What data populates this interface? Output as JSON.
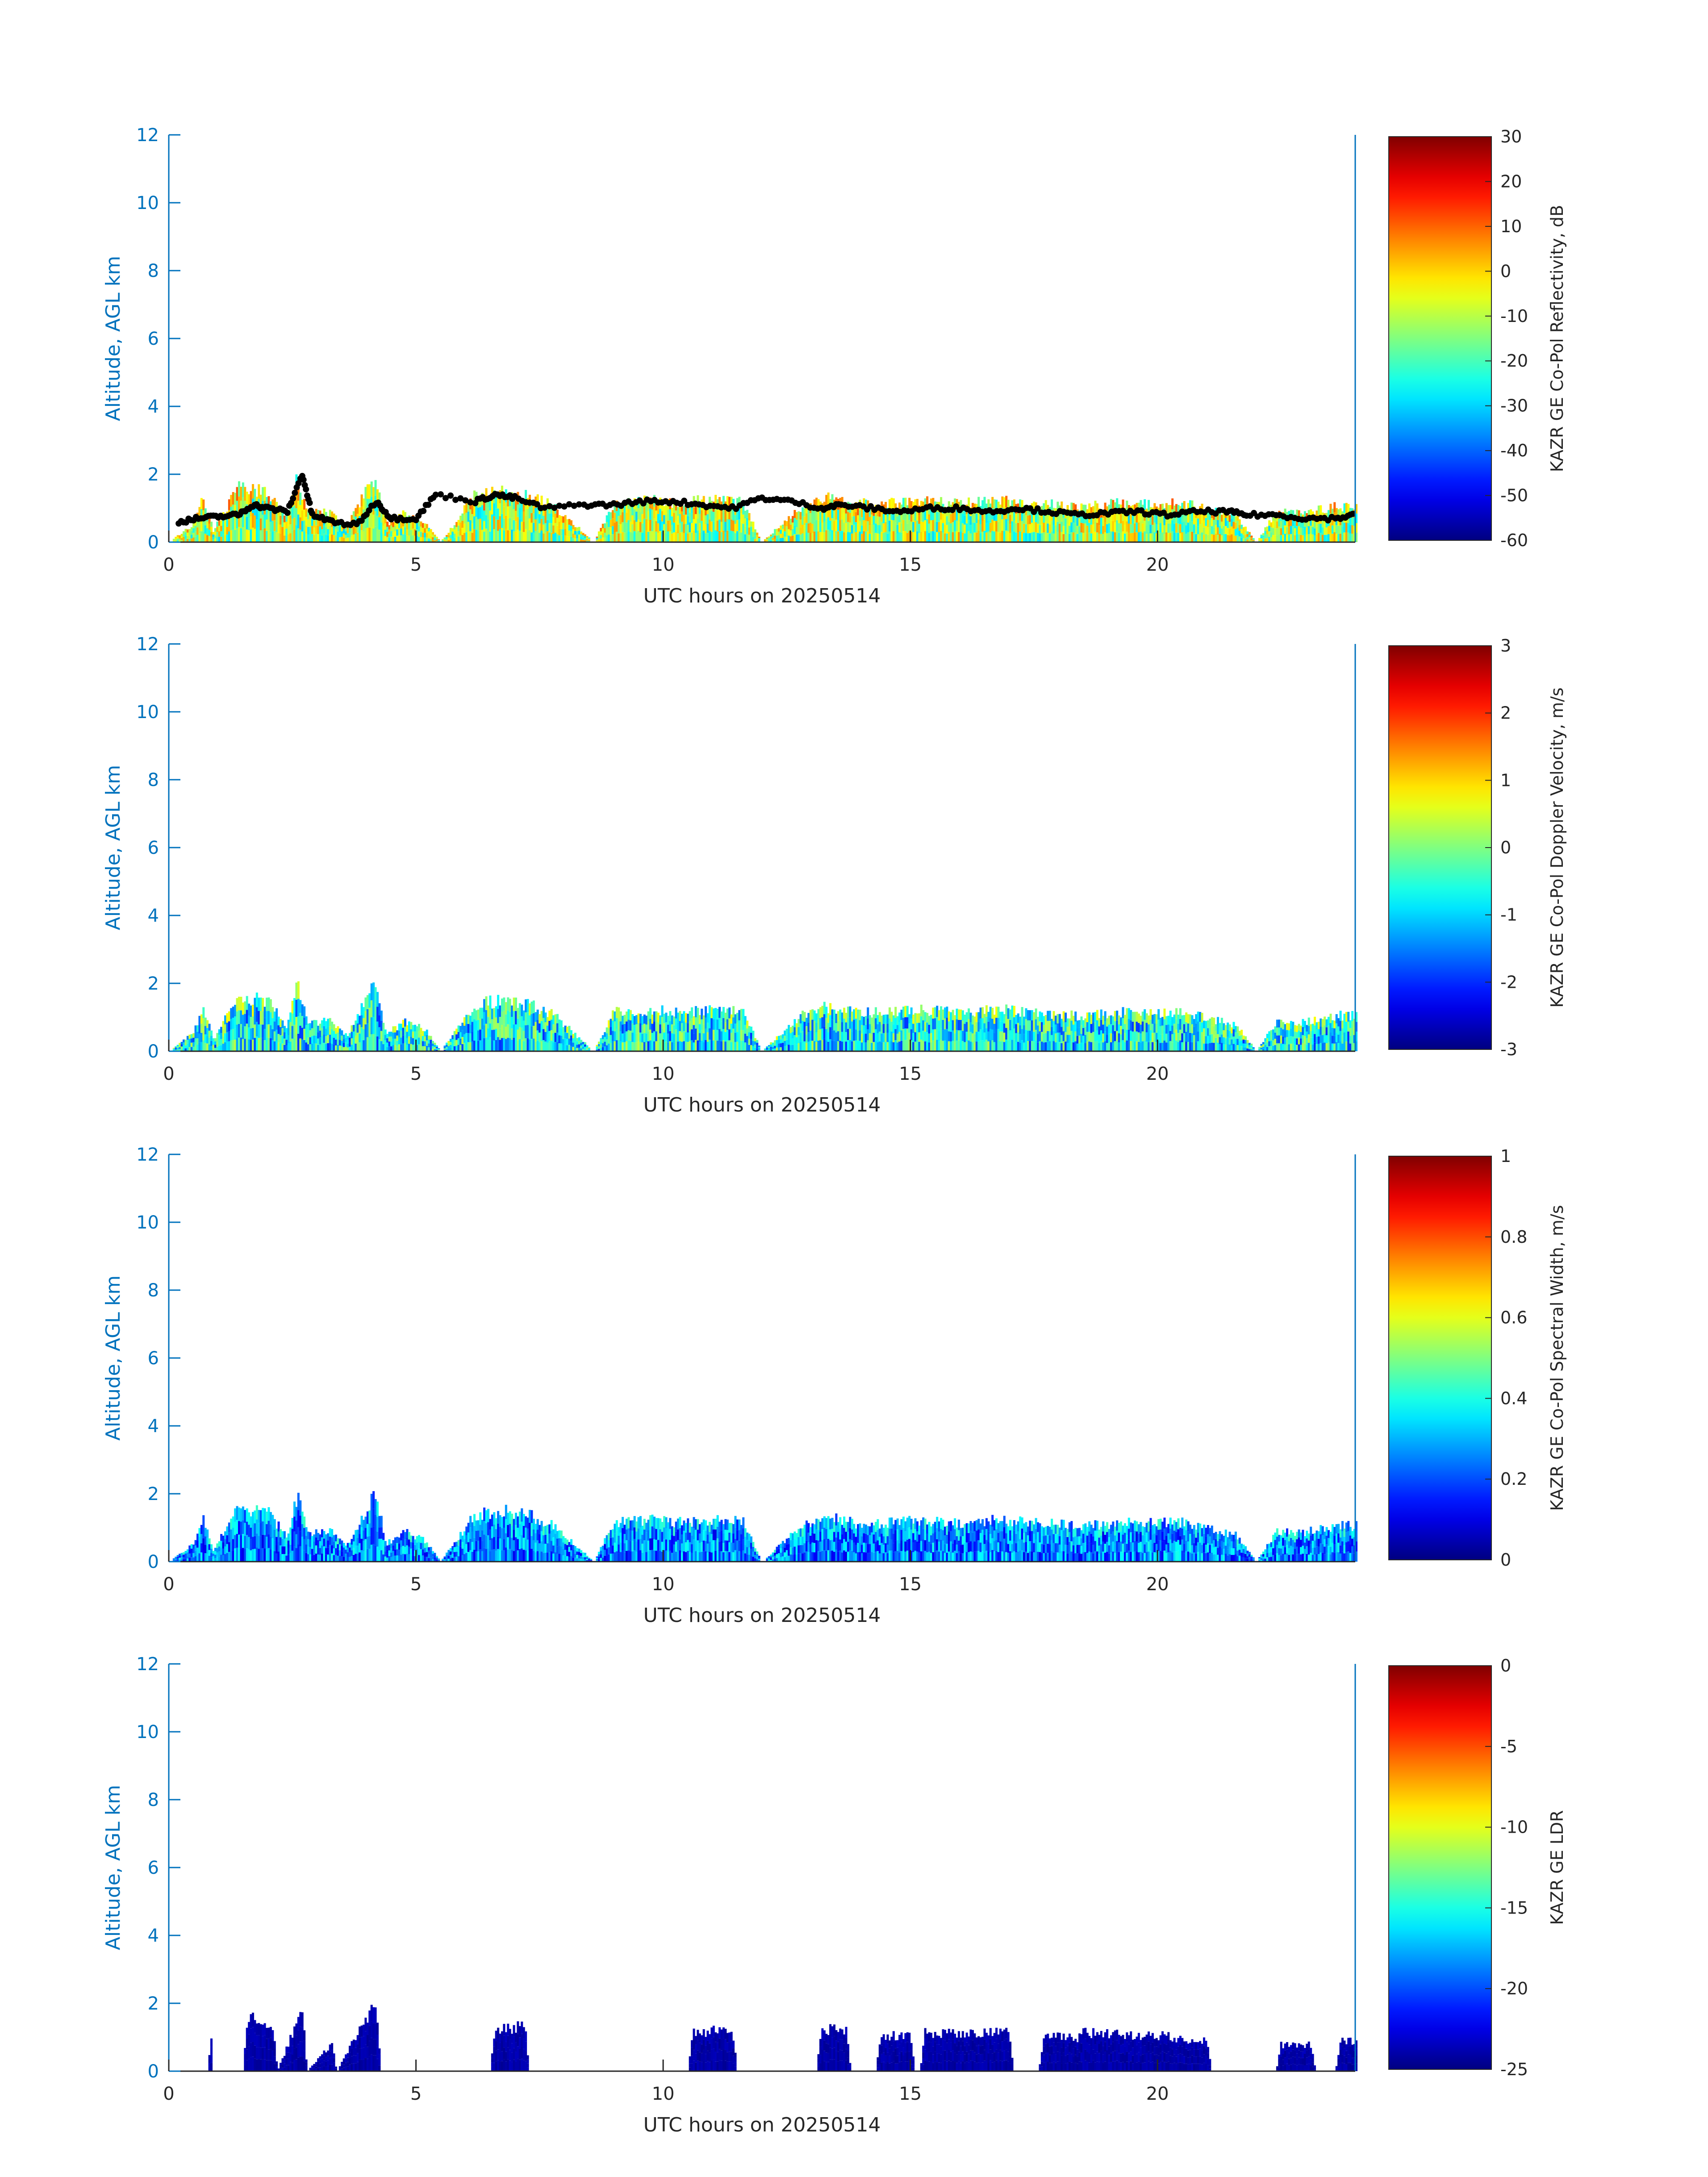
{
  "colors": {
    "axis_y": "#0072bd",
    "axis_x": "#262626",
    "marker": "#000000"
  },
  "chart_data": [
    {
      "type": "heatmap",
      "xlabel": "UTC hours on 20250514",
      "ylabel": "Altitude, AGL km",
      "xlim": [
        0,
        24
      ],
      "ylim": [
        0,
        12
      ],
      "xticks": [
        0,
        5,
        10,
        15,
        20
      ],
      "yticks": [
        0,
        2,
        4,
        6,
        8,
        10,
        12
      ],
      "colormap": "jet",
      "colorbar": {
        "label": "KAZR GE Co-Pol Reflectivity, dB",
        "range": [
          -60,
          30
        ],
        "ticks": [
          -60,
          -50,
          -40,
          -30,
          -20,
          -10,
          0,
          10,
          20,
          30
        ]
      },
      "cloud_top_km": [
        [
          0,
          0
        ],
        [
          0.5,
          0.6
        ],
        [
          0.7,
          1.5
        ],
        [
          0.9,
          0.4
        ],
        [
          1.4,
          1.8
        ],
        [
          2.0,
          1.7
        ],
        [
          2.4,
          0.8
        ],
        [
          2.6,
          2.2
        ],
        [
          2.8,
          1.0
        ],
        [
          3.3,
          1.0
        ],
        [
          3.6,
          0.5
        ],
        [
          4.0,
          1.8
        ],
        [
          4.2,
          2.2
        ],
        [
          4.4,
          0.6
        ],
        [
          4.8,
          1.0
        ],
        [
          5.2,
          0.7
        ],
        [
          5.5,
          0
        ],
        [
          6.2,
          1.6
        ],
        [
          6.8,
          1.7
        ],
        [
          7.4,
          1.5
        ],
        [
          7.8,
          1.2
        ],
        [
          8.6,
          0
        ],
        [
          9.0,
          1.3
        ],
        [
          9.8,
          1.4
        ],
        [
          10.2,
          1.3
        ],
        [
          10.8,
          1.4
        ],
        [
          11.6,
          1.4
        ],
        [
          12.0,
          0
        ],
        [
          12.8,
          1.2
        ],
        [
          13.3,
          1.5
        ],
        [
          13.9,
          1.3
        ],
        [
          14.4,
          1.3
        ],
        [
          15.2,
          1.4
        ],
        [
          16.0,
          1.3
        ],
        [
          16.8,
          1.4
        ],
        [
          17.6,
          1.3
        ],
        [
          18.4,
          1.2
        ],
        [
          19.2,
          1.3
        ],
        [
          20.0,
          1.3
        ],
        [
          20.6,
          1.3
        ],
        [
          21.0,
          1.1
        ],
        [
          21.6,
          0.9
        ],
        [
          22.0,
          0
        ],
        [
          22.4,
          1.0
        ],
        [
          23.0,
          1.0
        ],
        [
          23.6,
          1.2
        ],
        [
          24,
          1.2
        ]
      ],
      "mean_value": -12,
      "spread": 18,
      "marker_series": {
        "name": "",
        "points": [
          [
            0.2,
            0.6
          ],
          [
            0.6,
            0.7
          ],
          [
            1.0,
            0.75
          ],
          [
            1.4,
            0.8
          ],
          [
            1.7,
            1.1
          ],
          [
            2.0,
            1.0
          ],
          [
            2.4,
            0.9
          ],
          [
            2.7,
            2.0
          ],
          [
            2.9,
            0.8
          ],
          [
            3.3,
            0.6
          ],
          [
            3.8,
            0.5
          ],
          [
            4.2,
            1.2
          ],
          [
            4.5,
            0.7
          ],
          [
            5.0,
            0.7
          ],
          [
            5.4,
            1.4
          ],
          [
            6.2,
            1.2
          ],
          [
            6.6,
            1.4
          ],
          [
            7.0,
            1.3
          ],
          [
            7.6,
            1.0
          ],
          [
            8.4,
            1.1
          ],
          [
            9.0,
            1.1
          ],
          [
            9.6,
            1.2
          ],
          [
            10.2,
            1.2
          ],
          [
            10.8,
            1.1
          ],
          [
            11.4,
            1.0
          ],
          [
            12.0,
            1.3
          ],
          [
            12.6,
            1.2
          ],
          [
            13.2,
            1.0
          ],
          [
            13.6,
            1.1
          ],
          [
            14.2,
            1.0
          ],
          [
            14.8,
            0.9
          ],
          [
            15.4,
            1.0
          ],
          [
            16.0,
            1.0
          ],
          [
            16.6,
            0.9
          ],
          [
            17.2,
            1.0
          ],
          [
            17.8,
            0.9
          ],
          [
            18.4,
            0.8
          ],
          [
            19.0,
            0.85
          ],
          [
            19.6,
            0.9
          ],
          [
            20.2,
            0.8
          ],
          [
            20.8,
            0.9
          ],
          [
            21.4,
            0.9
          ],
          [
            21.8,
            0.8
          ],
          [
            22.4,
            0.8
          ],
          [
            23.0,
            0.7
          ],
          [
            23.6,
            0.7
          ],
          [
            24,
            0.8
          ]
        ]
      }
    },
    {
      "type": "heatmap",
      "xlabel": "UTC hours on 20250514",
      "ylabel": "Altitude, AGL km",
      "xlim": [
        0,
        24
      ],
      "ylim": [
        0,
        12
      ],
      "xticks": [
        0,
        5,
        10,
        15,
        20
      ],
      "yticks": [
        0,
        2,
        4,
        6,
        8,
        10,
        12
      ],
      "colormap": "jet",
      "colorbar": {
        "label": "KAZR GE Co-Pol Doppler Velocity, m/s",
        "range": [
          -3,
          3
        ],
        "ticks": [
          -3,
          -2,
          -1,
          0,
          1,
          2,
          3
        ]
      },
      "cloud_top_km": [
        [
          0,
          0
        ],
        [
          0.5,
          0.6
        ],
        [
          0.7,
          1.5
        ],
        [
          0.9,
          0.4
        ],
        [
          1.4,
          1.8
        ],
        [
          2.0,
          1.7
        ],
        [
          2.4,
          0.8
        ],
        [
          2.6,
          2.2
        ],
        [
          2.8,
          1.0
        ],
        [
          3.3,
          1.0
        ],
        [
          3.6,
          0.5
        ],
        [
          4.0,
          1.8
        ],
        [
          4.2,
          2.2
        ],
        [
          4.4,
          0.6
        ],
        [
          4.8,
          1.0
        ],
        [
          5.2,
          0.7
        ],
        [
          5.5,
          0
        ],
        [
          6.2,
          1.6
        ],
        [
          6.8,
          1.7
        ],
        [
          7.4,
          1.5
        ],
        [
          7.8,
          1.2
        ],
        [
          8.6,
          0
        ],
        [
          9.0,
          1.3
        ],
        [
          9.8,
          1.4
        ],
        [
          10.2,
          1.3
        ],
        [
          10.8,
          1.4
        ],
        [
          11.6,
          1.4
        ],
        [
          12.0,
          0
        ],
        [
          12.8,
          1.2
        ],
        [
          13.3,
          1.5
        ],
        [
          13.9,
          1.3
        ],
        [
          14.4,
          1.3
        ],
        [
          15.2,
          1.4
        ],
        [
          16.0,
          1.3
        ],
        [
          16.8,
          1.4
        ],
        [
          17.6,
          1.3
        ],
        [
          18.4,
          1.2
        ],
        [
          19.2,
          1.3
        ],
        [
          20.0,
          1.3
        ],
        [
          20.6,
          1.3
        ],
        [
          21.0,
          1.1
        ],
        [
          21.6,
          0.9
        ],
        [
          22.0,
          0
        ],
        [
          22.4,
          1.0
        ],
        [
          23.0,
          1.0
        ],
        [
          23.6,
          1.2
        ],
        [
          24,
          1.2
        ]
      ],
      "mean_value": -0.8,
      "spread": 1.2
    },
    {
      "type": "heatmap",
      "xlabel": "UTC hours on 20250514",
      "ylabel": "Altitude, AGL km",
      "xlim": [
        0,
        24
      ],
      "ylim": [
        0,
        12
      ],
      "xticks": [
        0,
        5,
        10,
        15,
        20
      ],
      "yticks": [
        0,
        2,
        4,
        6,
        8,
        10,
        12
      ],
      "colormap": "jet",
      "colorbar": {
        "label": "KAZR GE Co-Pol Spectral Width, m/s",
        "range": [
          0,
          1
        ],
        "ticks": [
          0,
          0.2,
          0.4,
          0.6,
          0.8,
          1
        ]
      },
      "cloud_top_km": [
        [
          0,
          0
        ],
        [
          0.5,
          0.6
        ],
        [
          0.7,
          1.5
        ],
        [
          0.9,
          0.4
        ],
        [
          1.4,
          1.8
        ],
        [
          2.0,
          1.7
        ],
        [
          2.4,
          0.8
        ],
        [
          2.6,
          2.2
        ],
        [
          2.8,
          1.0
        ],
        [
          3.3,
          1.0
        ],
        [
          3.6,
          0.5
        ],
        [
          4.0,
          1.8
        ],
        [
          4.2,
          2.2
        ],
        [
          4.4,
          0.6
        ],
        [
          4.8,
          1.0
        ],
        [
          5.2,
          0.7
        ],
        [
          5.5,
          0
        ],
        [
          6.2,
          1.6
        ],
        [
          6.8,
          1.7
        ],
        [
          7.4,
          1.5
        ],
        [
          7.8,
          1.2
        ],
        [
          8.6,
          0
        ],
        [
          9.0,
          1.3
        ],
        [
          9.8,
          1.4
        ],
        [
          10.2,
          1.3
        ],
        [
          10.8,
          1.4
        ],
        [
          11.6,
          1.4
        ],
        [
          12.0,
          0
        ],
        [
          12.8,
          1.2
        ],
        [
          13.3,
          1.5
        ],
        [
          13.9,
          1.3
        ],
        [
          14.4,
          1.3
        ],
        [
          15.2,
          1.4
        ],
        [
          16.0,
          1.3
        ],
        [
          16.8,
          1.4
        ],
        [
          17.6,
          1.3
        ],
        [
          18.4,
          1.2
        ],
        [
          19.2,
          1.3
        ],
        [
          20.0,
          1.3
        ],
        [
          20.6,
          1.3
        ],
        [
          21.0,
          1.1
        ],
        [
          21.6,
          0.9
        ],
        [
          22.0,
          0
        ],
        [
          22.4,
          1.0
        ],
        [
          23.0,
          1.0
        ],
        [
          23.6,
          1.2
        ],
        [
          24,
          1.2
        ]
      ],
      "mean_value": 0.25,
      "spread": 0.15
    },
    {
      "type": "heatmap",
      "xlabel": "UTC hours on 20250514",
      "ylabel": "Altitude, AGL km",
      "xlim": [
        0,
        24
      ],
      "ylim": [
        0,
        12
      ],
      "xticks": [
        0,
        5,
        10,
        15,
        20
      ],
      "yticks": [
        0,
        2,
        4,
        6,
        8,
        10,
        12
      ],
      "colormap": "jet",
      "colorbar": {
        "label": "KAZR GE LDR",
        "range": [
          -25,
          0
        ],
        "ticks": [
          -25,
          -20,
          -15,
          -10,
          -5,
          0
        ]
      },
      "cloud_top_km": [
        [
          0,
          0
        ],
        [
          0.8,
          0
        ],
        [
          0.85,
          1.4
        ],
        [
          0.9,
          0
        ],
        [
          1.5,
          0
        ],
        [
          1.6,
          1.8
        ],
        [
          2.1,
          1.5
        ],
        [
          2.2,
          0
        ],
        [
          2.7,
          2.1
        ],
        [
          2.8,
          0
        ],
        [
          3.3,
          0.9
        ],
        [
          3.4,
          0
        ],
        [
          4.0,
          1.8
        ],
        [
          4.2,
          2.2
        ],
        [
          4.3,
          0
        ],
        [
          6.5,
          0
        ],
        [
          6.6,
          1.4
        ],
        [
          7.2,
          1.5
        ],
        [
          7.3,
          0
        ],
        [
          10.5,
          0
        ],
        [
          10.6,
          1.3
        ],
        [
          11.4,
          1.4
        ],
        [
          11.5,
          0
        ],
        [
          13.1,
          0
        ],
        [
          13.2,
          1.4
        ],
        [
          13.7,
          1.4
        ],
        [
          13.8,
          0
        ],
        [
          14.3,
          0
        ],
        [
          14.4,
          1.2
        ],
        [
          15.0,
          1.2
        ],
        [
          15.1,
          0
        ],
        [
          15.2,
          0
        ],
        [
          15.3,
          1.3
        ],
        [
          17.0,
          1.3
        ],
        [
          17.1,
          0
        ],
        [
          17.6,
          0
        ],
        [
          17.7,
          1.2
        ],
        [
          18.4,
          1.1
        ],
        [
          18.5,
          1.3
        ],
        [
          19.6,
          1.2
        ],
        [
          20.0,
          1.2
        ],
        [
          21.0,
          1.0
        ],
        [
          21.1,
          0
        ],
        [
          22.4,
          0
        ],
        [
          22.5,
          0.9
        ],
        [
          23.1,
          0.9
        ],
        [
          23.2,
          0
        ],
        [
          23.6,
          0
        ],
        [
          23.7,
          1.0
        ],
        [
          24,
          1.0
        ]
      ],
      "mean_value": -24,
      "spread": 0.5
    }
  ]
}
